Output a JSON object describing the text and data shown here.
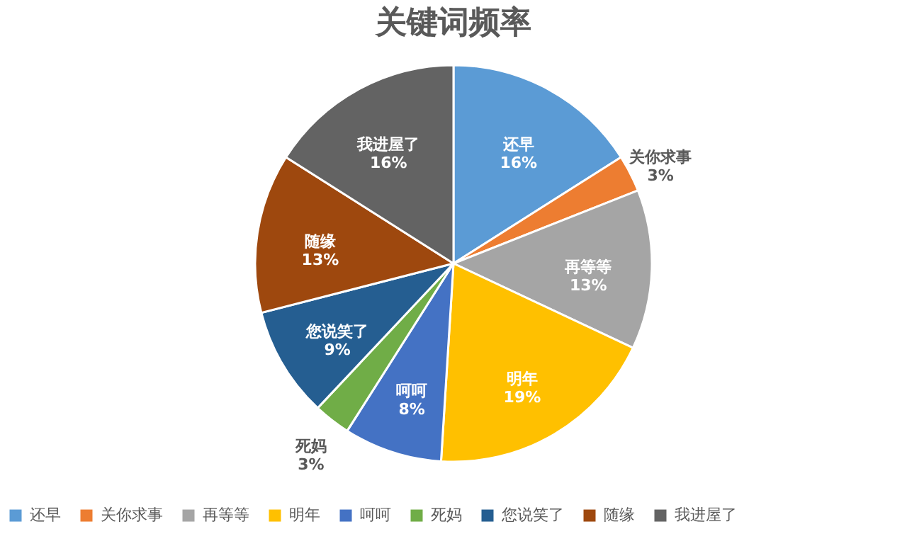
{
  "chart_data": {
    "type": "pie",
    "title": "关键词频率",
    "categories": [
      "还早",
      "关你求事",
      "再等等",
      "明年",
      "呵呵",
      "死妈",
      "您说笑了",
      "随缘",
      "我进屋了"
    ],
    "values": [
      16,
      3,
      13,
      19,
      8,
      3,
      9,
      13,
      16
    ],
    "value_labels": [
      "16%",
      "3%",
      "13%",
      "19%",
      "8%",
      "3%",
      "9%",
      "13%",
      "16%"
    ],
    "colors": [
      "#5b9bd5",
      "#ed7d31",
      "#a5a5a5",
      "#ffc000",
      "#4472c4",
      "#70ad47",
      "#255e91",
      "#9e480e",
      "#636363"
    ],
    "legend": "bottom"
  }
}
